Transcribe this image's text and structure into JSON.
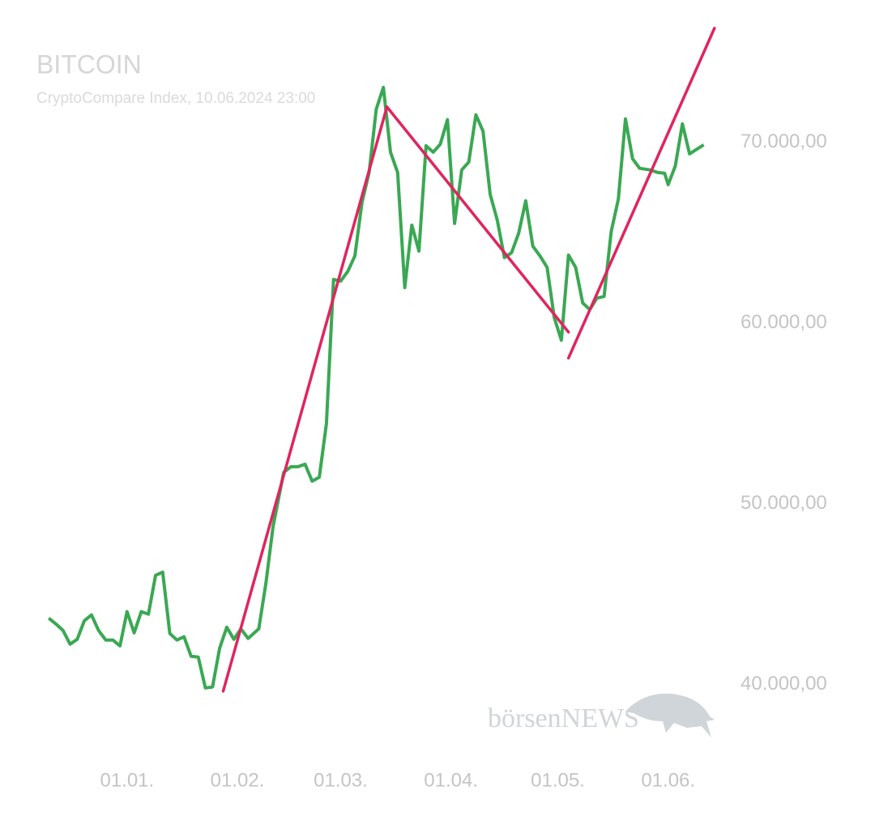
{
  "chart_data": {
    "type": "line",
    "title": "BITCOIN",
    "subtitle": "CryptoCompare Index, 10.06.2024 23:00",
    "watermark": "börsenNEWS",
    "color": "#3aa853",
    "x": [
      -22,
      -20,
      -18,
      -16,
      -14,
      -12,
      -10,
      -8,
      -6,
      -4,
      -2,
      0,
      2,
      4,
      6,
      8,
      10,
      12,
      14,
      16,
      18,
      20,
      22,
      24,
      26,
      28,
      30,
      32,
      34,
      37,
      39,
      41,
      44,
      46,
      48,
      50,
      52,
      54,
      56,
      58,
      60,
      62,
      64,
      66,
      68,
      70,
      72,
      74,
      76,
      78,
      80,
      82,
      84,
      86,
      88,
      90,
      92,
      94,
      96,
      98,
      100,
      102,
      104,
      106,
      108,
      110,
      112,
      114,
      116,
      118,
      120,
      122,
      124,
      126,
      128,
      130,
      132,
      134,
      136,
      138,
      140,
      142,
      144,
      147,
      149,
      151,
      152,
      154,
      156,
      158,
      162
    ],
    "values": [
      43680,
      43360,
      43000,
      42240,
      42510,
      43540,
      43860,
      43000,
      42470,
      42470,
      42150,
      44040,
      42870,
      44040,
      43900,
      46050,
      46230,
      42830,
      42470,
      42650,
      41570,
      41530,
      39820,
      39870,
      42020,
      43180,
      42510,
      43090,
      42560,
      43090,
      45610,
      48740,
      51750,
      52060,
      52060,
      52200,
      51260,
      51480,
      54440,
      62420,
      62330,
      62870,
      63720,
      66680,
      68340,
      71840,
      73050,
      69460,
      68340,
      61970,
      65430,
      63990,
      69820,
      69460,
      69910,
      71260,
      65520,
      68480,
      68920,
      71530,
      70630,
      67130,
      65700,
      63630,
      63900,
      64980,
      66770,
      64260,
      63720,
      63090,
      60310,
      59060,
      63770,
      63090,
      61120,
      60760,
      61390,
      61480,
      65070,
      66860,
      71300,
      69100,
      68570,
      68480,
      68340,
      68300,
      67670,
      68700,
      71030,
      69370,
      69870
    ],
    "trendlines": [
      {
        "color": "#e0245e",
        "points": [
          [
            27,
            39640
          ],
          [
            73,
            71970
          ]
        ]
      },
      {
        "color": "#e0245e",
        "points": [
          [
            73,
            71970
          ],
          [
            124,
            59510
          ]
        ]
      },
      {
        "color": "#e0245e",
        "points": [
          [
            124,
            58070
          ],
          [
            165,
            76320
          ]
        ]
      }
    ],
    "xlim": [
      -25,
      168
    ],
    "ylim": [
      36000,
      76000
    ],
    "xticks": [
      {
        "value": 0,
        "label": "01.01."
      },
      {
        "value": 31,
        "label": "01.02."
      },
      {
        "value": 60,
        "label": "01.03."
      },
      {
        "value": 91,
        "label": "01.04."
      },
      {
        "value": 121,
        "label": "01.05."
      },
      {
        "value": 152,
        "label": "01.06."
      }
    ],
    "yticks": [
      {
        "value": 40000,
        "label": "40.000,00"
      },
      {
        "value": 50000,
        "label": "50.000,00"
      },
      {
        "value": 60000,
        "label": "60.000,00"
      },
      {
        "value": 70000,
        "label": "70.000,00"
      }
    ],
    "grid": false
  }
}
